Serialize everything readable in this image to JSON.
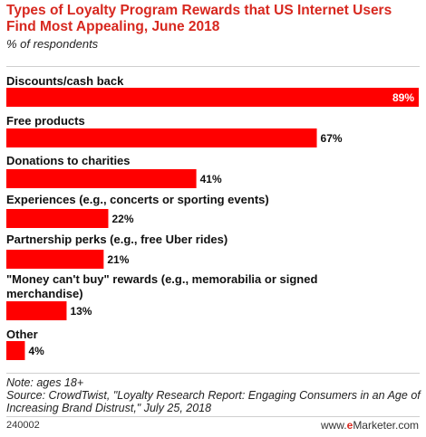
{
  "header": {
    "title": "Types of Loyalty Program Rewards that US Internet Users Find Most Appealing, June 2018",
    "subtitle": "% of respondents"
  },
  "chart_data": {
    "type": "bar",
    "orientation": "horizontal",
    "title": "Types of Loyalty Program Rewards that US Internet Users Find Most Appealing, June 2018",
    "subtitle": "% of respondents",
    "categories": [
      "Discounts/cash back",
      "Free products",
      "Donations to charities",
      "Experiences (e.g., concerts or sporting events)",
      "Partnership perks (e.g., free Uber rides)",
      "\"Money can't buy\" rewards (e.g., memorabilia or signed merchandise)",
      "Other"
    ],
    "label_lines": [
      [
        "Discounts/cash back"
      ],
      [
        "Free products"
      ],
      [
        "Donations to charities"
      ],
      [
        "Experiences (e.g., concerts or sporting events)"
      ],
      [
        "Partnership perks (e.g., free Uber rides)"
      ],
      [
        "\"Money can't buy\" rewards (e.g., memorabilia or signed",
        "merchandise)"
      ],
      [
        "Other"
      ]
    ],
    "values": [
      89,
      67,
      41,
      22,
      21,
      13,
      4
    ],
    "value_labels": [
      "89%",
      "67%",
      "41%",
      "22%",
      "21%",
      "13%",
      "4%"
    ],
    "xlim": [
      0,
      89
    ],
    "grid": false,
    "legend": "none",
    "bar_color": "#ff0000"
  },
  "footer": {
    "note": "Note: ages 18+",
    "source": "Source: CrowdTwist, \"Loyalty Research Report: Engaging Consumers in an Age of Increasing Brand Distrust,\" July 25, 2018",
    "code": "240002",
    "brand_prefix": "www.",
    "brand_e": "e",
    "brand_rest": "Marketer.com"
  }
}
